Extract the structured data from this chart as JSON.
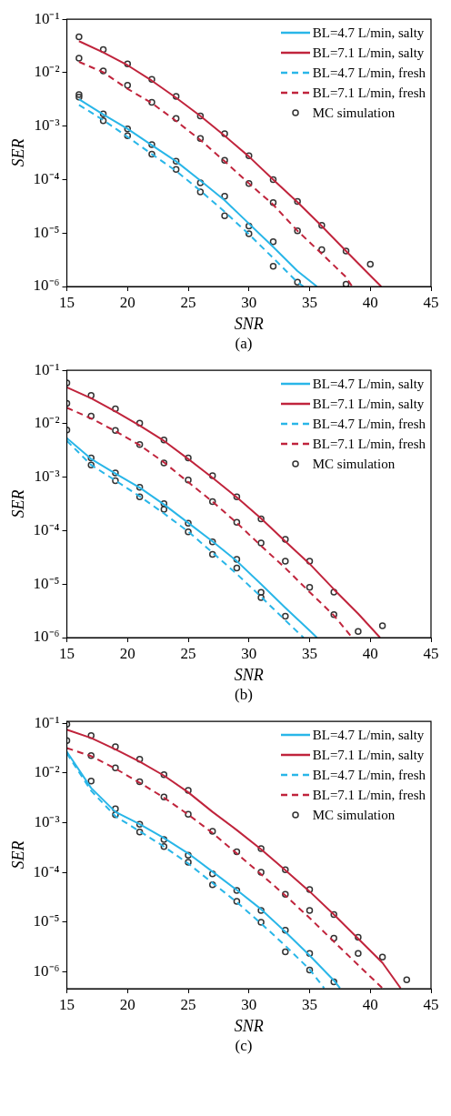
{
  "chart_data": [
    {
      "type": "line",
      "xlabel": "SNR",
      "ylabel": "SER",
      "annotations": [
        "(a)"
      ],
      "log": "y",
      "legend": "top right",
      "grid": false,
      "xlim": [
        15,
        45
      ],
      "xticks": [
        15,
        20,
        25,
        30,
        35,
        40,
        45
      ],
      "ylim": [
        1e-06,
        0.1
      ],
      "yticks": [
        {
          "value": 1e-06,
          "label": "10⁻⁶"
        },
        {
          "value": 1e-05,
          "label": "10⁻⁵"
        },
        {
          "value": 0.0001,
          "label": "10⁻⁴"
        },
        {
          "value": 0.001,
          "label": "10⁻³"
        },
        {
          "value": 0.01,
          "label": "10⁻²"
        },
        {
          "value": 0.1,
          "label": "10⁻¹"
        }
      ],
      "series": [
        {
          "name": "BL=4.7 L/min, salty",
          "color": "#29b6e8",
          "line_style": "solid",
          "marker": "none",
          "x": [
            16,
            18,
            20,
            22,
            24,
            26,
            28,
            30,
            32,
            34,
            35.6
          ],
          "values": [
            0.0032,
            0.00166,
            0.00089,
            0.00044,
            0.00022,
            9.6e-05,
            4.1e-05,
            1.5e-05,
            5.5e-06,
            1.95e-06,
            1e-06
          ]
        },
        {
          "name": "BL=7.1 L/min, salty",
          "color": "#c0243c",
          "line_style": "solid",
          "marker": "none",
          "x": [
            16,
            18,
            20,
            22,
            24,
            26,
            28,
            30,
            32,
            34,
            36,
            38,
            40,
            40.9
          ],
          "values": [
            0.039,
            0.024,
            0.0138,
            0.0071,
            0.0034,
            0.00155,
            0.00066,
            0.00027,
            0.0001,
            3.8e-05,
            1.35e-05,
            4.6e-06,
            1.6e-06,
            1e-06
          ]
        },
        {
          "name": "BL=4.7 L/min, fresh",
          "color": "#29b6e8",
          "line_style": "dashed",
          "marker": "none",
          "x": [
            16,
            18,
            20,
            22,
            24,
            26,
            28,
            30,
            32,
            34,
            34.5
          ],
          "values": [
            0.0025,
            0.0013,
            0.00063,
            0.0003,
            0.000145,
            6.2e-05,
            2.5e-05,
            9.5e-06,
            3.4e-06,
            1.2e-06,
            1e-06
          ]
        },
        {
          "name": "BL=7.1 L/min, fresh",
          "color": "#c0243c",
          "line_style": "dashed",
          "marker": "none",
          "x": [
            16,
            18,
            20,
            22,
            24,
            26,
            28,
            30,
            32,
            34,
            36,
            38,
            38.5
          ],
          "values": [
            0.016,
            0.0102,
            0.005,
            0.0027,
            0.00125,
            0.00055,
            0.00022,
            8.5e-05,
            3.4e-05,
            1.1e-05,
            4.1e-06,
            1.5e-06,
            1e-06
          ]
        },
        {
          "name": "MC simulation",
          "type": "scatter",
          "color": "#333333",
          "marker": "circle",
          "x": [
            16,
            18,
            20,
            22,
            24,
            26,
            28,
            30,
            32,
            34,
            36,
            38,
            40,
            16,
            18,
            20,
            22,
            24,
            26,
            28,
            30,
            32,
            34,
            36,
            38,
            16,
            18,
            20,
            22,
            24,
            26,
            28,
            30,
            32,
            34,
            16,
            18,
            20,
            22,
            24,
            26,
            28,
            30,
            32
          ],
          "values": [
            0.047,
            0.027,
            0.0147,
            0.0075,
            0.0036,
            0.00155,
            0.00072,
            0.00028,
            0.0001,
            3.9e-05,
            1.4e-05,
            4.6e-06,
            2.6e-06,
            0.0187,
            0.0108,
            0.0058,
            0.0028,
            0.0014,
            0.00059,
            0.00023,
            8.5e-05,
            3.7e-05,
            1.1e-05,
            4.9e-06,
            1.1e-06,
            0.0039,
            0.0017,
            0.00089,
            0.00045,
            0.00022,
            8.7e-05,
            4.9e-05,
            1.35e-05,
            6.9e-06,
            1.2e-06,
            0.0035,
            0.00126,
            0.00066,
            0.0003,
            0.000155,
            5.9e-05,
            2.1e-05,
            9.7e-06,
            2.4e-06
          ]
        }
      ]
    },
    {
      "type": "line",
      "xlabel": "SNR",
      "ylabel": "SER",
      "annotations": [
        "(b)"
      ],
      "log": "y",
      "legend": "top right",
      "grid": false,
      "xlim": [
        15,
        45
      ],
      "xticks": [
        15,
        20,
        25,
        30,
        35,
        40,
        45
      ],
      "ylim": [
        1e-06,
        0.1
      ],
      "yticks": [
        {
          "value": 1e-06,
          "label": "10⁻⁶"
        },
        {
          "value": 1e-05,
          "label": "10⁻⁵"
        },
        {
          "value": 0.0001,
          "label": "10⁻⁴"
        },
        {
          "value": 0.001,
          "label": "10⁻³"
        },
        {
          "value": 0.01,
          "label": "10⁻²"
        },
        {
          "value": 0.1,
          "label": "10⁻¹"
        }
      ],
      "series": [
        {
          "name": "BL=4.7 L/min, salty",
          "color": "#29b6e8",
          "line_style": "solid",
          "marker": "none",
          "x": [
            15,
            17,
            19,
            21,
            23,
            25,
            27,
            29,
            31,
            33,
            35,
            35.6
          ],
          "values": [
            0.0054,
            0.0022,
            0.00117,
            0.00064,
            0.00031,
            0.00014,
            6.3e-05,
            2.7e-05,
            1e-05,
            3.6e-06,
            1.35e-06,
            1e-06
          ]
        },
        {
          "name": "BL=7.1 L/min, salty",
          "color": "#c0243c",
          "line_style": "solid",
          "marker": "none",
          "x": [
            15,
            17,
            19,
            21,
            23,
            25,
            27,
            29,
            31,
            33,
            35,
            37,
            39,
            40.8
          ],
          "values": [
            0.048,
            0.03,
            0.017,
            0.0093,
            0.0048,
            0.0022,
            0.00098,
            0.00042,
            0.00017,
            6.3e-05,
            2.4e-05,
            8e-06,
            2.8e-06,
            1e-06
          ]
        },
        {
          "name": "BL=4.7 L/min, fresh",
          "color": "#29b6e8",
          "line_style": "dashed",
          "marker": "none",
          "x": [
            15,
            17,
            19,
            21,
            23,
            25,
            27,
            29,
            31,
            33,
            34.5
          ],
          "values": [
            0.0048,
            0.0017,
            0.00087,
            0.00044,
            0.00021,
            9.6e-05,
            3.9e-05,
            1.55e-05,
            5.8e-06,
            2.1e-06,
            1e-06
          ]
        },
        {
          "name": "BL=7.1 L/min, fresh",
          "color": "#c0243c",
          "line_style": "dashed",
          "marker": "none",
          "x": [
            15,
            17,
            19,
            21,
            23,
            25,
            27,
            29,
            31,
            33,
            35,
            37,
            38.5
          ],
          "values": [
            0.02,
            0.0126,
            0.0073,
            0.004,
            0.0019,
            0.00081,
            0.00035,
            0.00014,
            5.2e-05,
            2e-05,
            7.1e-06,
            2.6e-06,
            1e-06
          ]
        },
        {
          "name": "MC simulation",
          "type": "scatter",
          "color": "#333333",
          "marker": "circle",
          "x": [
            15,
            17,
            19,
            21,
            23,
            25,
            27,
            29,
            31,
            33,
            35,
            37,
            39,
            41,
            15,
            17,
            19,
            21,
            23,
            25,
            27,
            29,
            31,
            33,
            35,
            37,
            15,
            17,
            19,
            21,
            23,
            25,
            27,
            29,
            31,
            33,
            17,
            19,
            21,
            23,
            25,
            27,
            29,
            31
          ],
          "values": [
            0.058,
            0.034,
            0.019,
            0.0103,
            0.005,
            0.0023,
            0.00107,
            0.00043,
            0.000166,
            6.9e-05,
            2.7e-05,
            7.1e-06,
            1.3e-06,
            1.66e-06,
            0.024,
            0.0139,
            0.0075,
            0.0041,
            0.00186,
            0.00089,
            0.00035,
            0.000144,
            5.9e-05,
            2.7e-05,
            8.7e-06,
            2.7e-06,
            0.0077,
            0.0023,
            0.0012,
            0.00065,
            0.00032,
            0.000138,
            6.2e-05,
            2.9e-05,
            7e-06,
            2.5e-06,
            0.0017,
            0.00086,
            0.00043,
            0.00025,
            9.5e-05,
            3.6e-05,
            2e-05,
            5.6e-06
          ]
        }
      ]
    },
    {
      "type": "line",
      "xlabel": "SNR",
      "ylabel": "SER",
      "annotations": [
        "(c)"
      ],
      "log": "y",
      "legend": "top right",
      "grid": false,
      "xlim": [
        15,
        45
      ],
      "xticks": [
        15,
        20,
        25,
        30,
        35,
        40,
        45
      ],
      "ylim": [
        4.5e-07,
        0.11
      ],
      "yticks": [
        {
          "value": 1e-06,
          "label": "10⁻⁶"
        },
        {
          "value": 1e-05,
          "label": "10⁻⁵"
        },
        {
          "value": 0.0001,
          "label": "10⁻⁴"
        },
        {
          "value": 0.001,
          "label": "10⁻³"
        },
        {
          "value": 0.01,
          "label": "10⁻²"
        },
        {
          "value": 0.1,
          "label": "10⁻¹"
        }
      ],
      "series": [
        {
          "name": "BL=4.7 L/min, salty",
          "color": "#29b6e8",
          "line_style": "solid",
          "marker": "none",
          "x": [
            15,
            17,
            19,
            21,
            23,
            25,
            27,
            29,
            31,
            33,
            35,
            37,
            37.5
          ],
          "values": [
            0.027,
            0.005,
            0.00165,
            0.00093,
            0.00049,
            0.00024,
            0.000103,
            4.4e-05,
            1.8e-05,
            6.3e-06,
            2.1e-06,
            6.6e-07,
            4.6e-07
          ]
        },
        {
          "name": "BL=7.1 L/min, salty",
          "color": "#c0243c",
          "line_style": "solid",
          "marker": "none",
          "x": [
            15,
            17,
            19,
            21,
            23,
            25,
            27,
            29,
            31,
            33,
            35,
            37,
            39,
            41,
            42.5
          ],
          "values": [
            0.075,
            0.051,
            0.03,
            0.017,
            0.0089,
            0.0041,
            0.00165,
            0.00071,
            0.00029,
            0.00011,
            4.1e-05,
            1.4e-05,
            4.6e-06,
            1.5e-06,
            4.6e-07
          ]
        },
        {
          "name": "BL=4.7 L/min, fresh",
          "color": "#29b6e8",
          "line_style": "dashed",
          "marker": "none",
          "x": [
            15,
            17,
            19,
            21,
            23,
            25,
            27,
            29,
            31,
            33,
            35,
            36.2
          ],
          "values": [
            0.025,
            0.0044,
            0.00135,
            0.00067,
            0.00033,
            0.00015,
            6.1e-05,
            2.5e-05,
            9.3e-06,
            3.3e-06,
            1.1e-06,
            4.6e-07
          ]
        },
        {
          "name": "BL=7.1 L/min, fresh",
          "color": "#c0243c",
          "line_style": "dashed",
          "marker": "none",
          "x": [
            15,
            17,
            19,
            21,
            23,
            25,
            27,
            29,
            31,
            33,
            35,
            37,
            39,
            41
          ],
          "values": [
            0.032,
            0.022,
            0.0123,
            0.0064,
            0.0032,
            0.00146,
            0.00062,
            0.00024,
            9.1e-05,
            3.4e-05,
            1.2e-05,
            4e-06,
            1.35e-06,
            4.6e-07
          ]
        },
        {
          "name": "MC simulation",
          "type": "scatter",
          "color": "#333333",
          "marker": "circle",
          "x": [
            15,
            17,
            19,
            21,
            23,
            25,
            31,
            33,
            35,
            37,
            39,
            41,
            43,
            15,
            17,
            19,
            21,
            23,
            25,
            27,
            29,
            31,
            33,
            35,
            37,
            39,
            17,
            19,
            21,
            23,
            25,
            27,
            29,
            31,
            33,
            35,
            37,
            19,
            21,
            23,
            25,
            27,
            29,
            31,
            33,
            35
          ],
          "values": [
            0.097,
            0.057,
            0.034,
            0.019,
            0.0093,
            0.0045,
            0.0003,
            0.000113,
            4.5e-05,
            1.4e-05,
            4.9e-06,
            1.95e-06,
            6.8e-07,
            0.045,
            0.0225,
            0.0128,
            0.0067,
            0.0033,
            0.00148,
            0.00067,
            0.00026,
            0.0001,
            3.6e-05,
            1.7e-05,
            4.7e-06,
            2.3e-06,
            0.0069,
            0.0019,
            0.00093,
            0.00046,
            0.00022,
            9.3e-05,
            4.3e-05,
            1.7e-05,
            6.8e-06,
            2.3e-06,
            6.2e-07,
            0.00145,
            0.00065,
            0.00033,
            0.00016,
            5.6e-05,
            2.6e-05,
            9.8e-06,
            2.5e-06,
            1.07e-06
          ]
        }
      ]
    }
  ]
}
